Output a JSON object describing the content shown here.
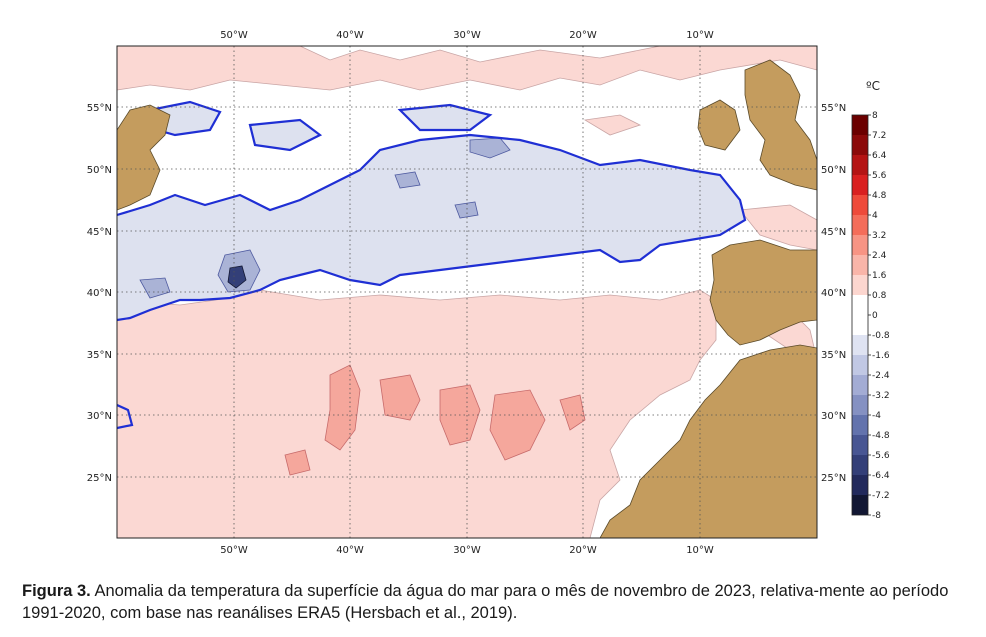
{
  "map": {
    "lon_labels": [
      "50°W",
      "40°W",
      "30°W",
      "20°W",
      "10°W"
    ],
    "lat_labels": [
      "55°N",
      "50°N",
      "45°N",
      "40°N",
      "35°N",
      "30°N",
      "25°N"
    ],
    "colors": {
      "land": "#c49c5e",
      "ocean": "#ffffff",
      "positive_light": "#fbd8d3",
      "positive_mid": "#f5a79c",
      "negative_light": "#dde1ef",
      "negative_mid": "#aab3d6",
      "zero_contour": "#1f2fd4"
    }
  },
  "colorbar": {
    "unit": "ºC",
    "labels": [
      "8",
      "7.2",
      "6.4",
      "5.6",
      "4.8",
      "4",
      "3.2",
      "2.4",
      "1.6",
      "0.8",
      "0",
      "-0.8",
      "-1.6",
      "-2.4",
      "-3.2",
      "-4",
      "-4.8",
      "-5.6",
      "-6.4",
      "-7.2",
      "-8"
    ],
    "colors": [
      "#6b0000",
      "#8b0a0a",
      "#b41414",
      "#d92020",
      "#ee4a3a",
      "#f46d5a",
      "#f79484",
      "#f9b5a9",
      "#fcd6cf",
      "#ffffff",
      "#ffffff",
      "#dfe3f2",
      "#c1c8e4",
      "#a3acd4",
      "#8591c2",
      "#6373ad",
      "#485693",
      "#333f78",
      "#222a5c",
      "#121733"
    ]
  },
  "caption": {
    "label": "Figura 3.",
    "text": " Anomalia da temperatura da superfície da água do mar para o mês de novembro de 2023, relativa-mente ao período 1991-2020, com base nas reanálises ERA5 (Hersbach et al., 2019)."
  }
}
